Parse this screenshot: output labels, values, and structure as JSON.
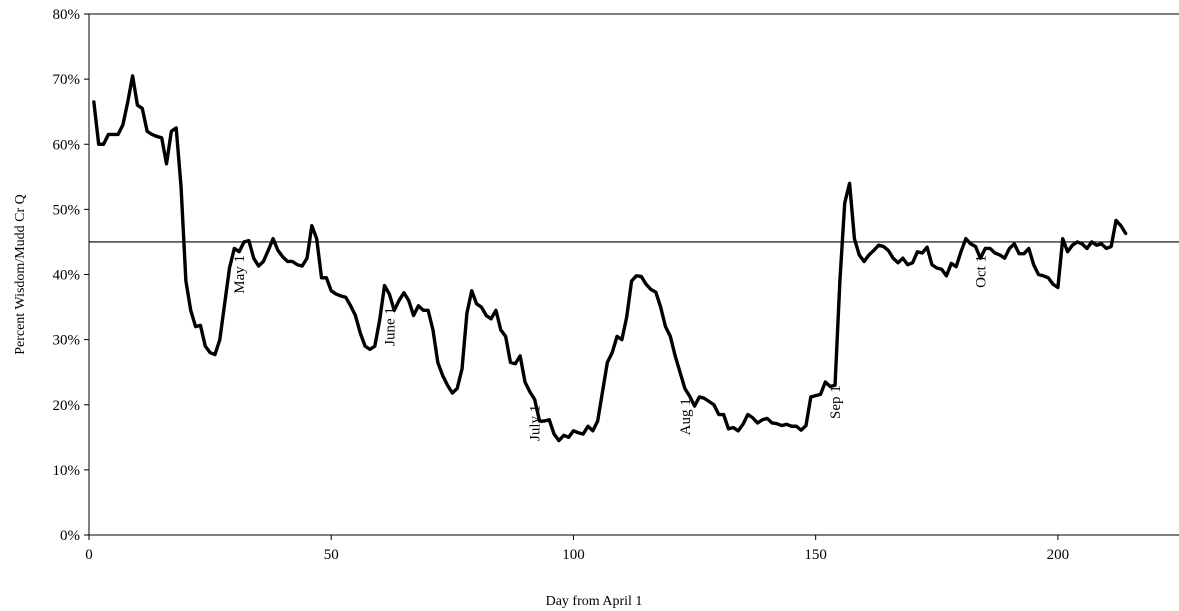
{
  "chart_data": {
    "type": "line",
    "title": "",
    "xlabel": "Day from April 1",
    "ylabel": "Percent Wisdom/Mudd Cr Q",
    "xlim": [
      0,
      225
    ],
    "ylim": [
      0,
      0.8
    ],
    "x_ticks": [
      0,
      50,
      100,
      150,
      200
    ],
    "x_tick_labels": [
      "0",
      "50",
      "100",
      "150",
      "200"
    ],
    "y_ticks": [
      0,
      0.1,
      0.2,
      0.3,
      0.4,
      0.5,
      0.6,
      0.7,
      0.8
    ],
    "y_tick_labels": [
      "0%",
      "10%",
      "20%",
      "30%",
      "40%",
      "50%",
      "60%",
      "70%",
      "80%"
    ],
    "grid": false,
    "legend": "none",
    "reference_line": {
      "y": 0.45
    },
    "annotations": [
      {
        "text": "May 1",
        "x": 31,
        "y": 0.43
      },
      {
        "text": "June 1",
        "x": 62,
        "y": 0.35
      },
      {
        "text": "July 1",
        "x": 92,
        "y": 0.2
      },
      {
        "text": "Aug 1",
        "x": 123,
        "y": 0.21
      },
      {
        "text": "Sep 1",
        "x": 154,
        "y": 0.23
      },
      {
        "text": "Oct 1",
        "x": 184,
        "y": 0.43
      }
    ],
    "series": [
      {
        "color": "#000000",
        "x": [
          1,
          2,
          3,
          4,
          5,
          6,
          7,
          8,
          9,
          10,
          11,
          12,
          13,
          14,
          15,
          16,
          17,
          18,
          19,
          20,
          21,
          22,
          23,
          24,
          25,
          26,
          27,
          28,
          29,
          30,
          31,
          32,
          33,
          34,
          35,
          36,
          37,
          38,
          39,
          40,
          41,
          42,
          43,
          44,
          45,
          46,
          47,
          48,
          49,
          50,
          51,
          52,
          53,
          54,
          55,
          56,
          57,
          58,
          59,
          60,
          61,
          62,
          63,
          64,
          65,
          66,
          67,
          68,
          69,
          70,
          71,
          72,
          73,
          74,
          75,
          76,
          77,
          78,
          79,
          80,
          81,
          82,
          83,
          84,
          85,
          86,
          87,
          88,
          89,
          90,
          91,
          92,
          93,
          94,
          95,
          96,
          97,
          98,
          99,
          100,
          101,
          102,
          103,
          104,
          105,
          106,
          107,
          108,
          109,
          110,
          111,
          112,
          113,
          114,
          115,
          116,
          117,
          118,
          119,
          120,
          121,
          122,
          123,
          124,
          125,
          126,
          127,
          128,
          129,
          130,
          131,
          132,
          133,
          134,
          135,
          136,
          137,
          138,
          139,
          140,
          141,
          142,
          143,
          144,
          145,
          146,
          147,
          148,
          149,
          150,
          151,
          152,
          153,
          154,
          155,
          156,
          157,
          158,
          159,
          160,
          161,
          162,
          163,
          164,
          165,
          166,
          167,
          168,
          169,
          170,
          171,
          172,
          173,
          174,
          175,
          176,
          177,
          178,
          179,
          180,
          181,
          182,
          183,
          184,
          185,
          186,
          187,
          188,
          189,
          190,
          191,
          192,
          193,
          194,
          195,
          196,
          197,
          198,
          199,
          200,
          201,
          202,
          203,
          204,
          205,
          206,
          207,
          208,
          209,
          210,
          211,
          212,
          213,
          214
        ],
        "values": [
          0.665,
          0.6,
          0.6,
          0.615,
          0.615,
          0.615,
          0.63,
          0.665,
          0.705,
          0.66,
          0.655,
          0.62,
          0.615,
          0.612,
          0.61,
          0.57,
          0.62,
          0.625,
          0.535,
          0.39,
          0.345,
          0.32,
          0.322,
          0.29,
          0.28,
          0.277,
          0.3,
          0.355,
          0.41,
          0.44,
          0.435,
          0.45,
          0.452,
          0.425,
          0.413,
          0.42,
          0.437,
          0.455,
          0.437,
          0.427,
          0.42,
          0.42,
          0.415,
          0.413,
          0.425,
          0.475,
          0.455,
          0.395,
          0.395,
          0.375,
          0.37,
          0.367,
          0.365,
          0.352,
          0.337,
          0.31,
          0.29,
          0.285,
          0.29,
          0.33,
          0.383,
          0.37,
          0.345,
          0.36,
          0.372,
          0.36,
          0.337,
          0.352,
          0.345,
          0.345,
          0.315,
          0.265,
          0.245,
          0.23,
          0.218,
          0.225,
          0.255,
          0.34,
          0.375,
          0.355,
          0.35,
          0.337,
          0.332,
          0.345,
          0.315,
          0.305,
          0.265,
          0.263,
          0.275,
          0.235,
          0.22,
          0.208,
          0.175,
          0.175,
          0.177,
          0.155,
          0.145,
          0.153,
          0.15,
          0.16,
          0.157,
          0.155,
          0.167,
          0.16,
          0.175,
          0.22,
          0.265,
          0.28,
          0.305,
          0.3,
          0.335,
          0.39,
          0.398,
          0.397,
          0.385,
          0.377,
          0.373,
          0.35,
          0.32,
          0.305,
          0.275,
          0.25,
          0.225,
          0.213,
          0.198,
          0.212,
          0.21,
          0.205,
          0.2,
          0.185,
          0.185,
          0.163,
          0.165,
          0.16,
          0.17,
          0.185,
          0.18,
          0.172,
          0.177,
          0.179,
          0.172,
          0.171,
          0.168,
          0.17,
          0.167,
          0.167,
          0.161,
          0.168,
          0.212,
          0.214,
          0.216,
          0.235,
          0.228,
          0.23,
          0.39,
          0.51,
          0.54,
          0.455,
          0.43,
          0.42,
          0.43,
          0.437,
          0.445,
          0.443,
          0.437,
          0.425,
          0.418,
          0.425,
          0.415,
          0.418,
          0.435,
          0.433,
          0.442,
          0.415,
          0.41,
          0.408,
          0.398,
          0.417,
          0.412,
          0.435,
          0.455,
          0.447,
          0.443,
          0.425,
          0.44,
          0.44,
          0.433,
          0.43,
          0.425,
          0.44,
          0.447,
          0.432,
          0.432,
          0.44,
          0.415,
          0.4,
          0.398,
          0.395,
          0.385,
          0.38,
          0.455,
          0.435,
          0.445,
          0.45,
          0.447,
          0.44,
          0.45,
          0.445,
          0.447,
          0.44,
          0.443,
          0.483,
          0.475,
          0.463
        ]
      }
    ]
  }
}
